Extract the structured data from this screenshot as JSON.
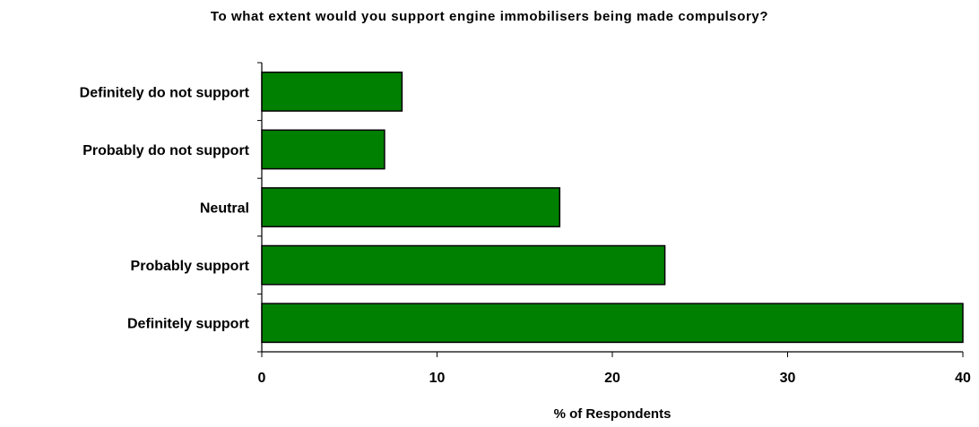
{
  "chart_data": {
    "type": "bar",
    "orientation": "horizontal",
    "title": "To what extent would you support engine immobilisers being made compulsory?",
    "xlabel": "% of Respondents",
    "ylabel": "",
    "categories": [
      "Definitely do not support",
      "Probably do not support",
      "Neutral",
      "Probably support",
      "Definitely support"
    ],
    "values": [
      8,
      7,
      17,
      23,
      40
    ],
    "xlim": [
      0,
      40
    ],
    "ticks": [
      "0",
      "10",
      "20",
      "30",
      "40"
    ],
    "grid": false,
    "legend": "none",
    "bar_color": "#008000",
    "bar_outline": "#000000"
  }
}
